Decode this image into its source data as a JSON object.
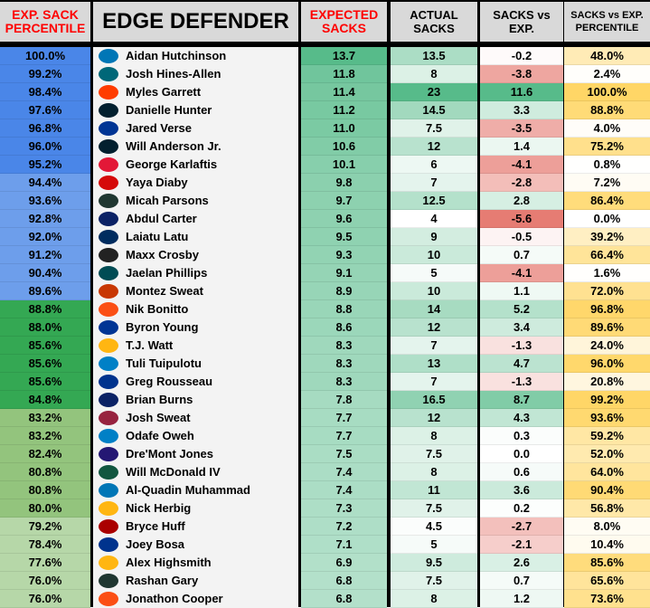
{
  "headers": {
    "pct": "EXP. SACK PERCENTILE",
    "name": "EDGE DEFENDER",
    "exp": "EXPECTED SACKS",
    "actual": "ACTUAL SACKS",
    "diff": "SACKS vs EXP.",
    "diffpct": "SACKS vs EXP. PERCENTILE"
  },
  "colors": {
    "tier1": "#4a86e8",
    "tier2": "#6d9eeb",
    "tier3": "#34a853",
    "tier4": "#93c47d",
    "tier5": "#b6d7a8",
    "green": "#57bb8a",
    "red": "#e67c73",
    "yellow": "#ffd666",
    "name_bg": "#f3f3f3",
    "header_bg": "#d9d9d9"
  },
  "rows": [
    {
      "pct": "100.0%",
      "logo": "lions-logo",
      "name": "Aidan Hutchinson",
      "exp": "13.7",
      "actual": "13.5",
      "diff": "-0.2",
      "diffpct": "48.0%",
      "tier": 1
    },
    {
      "pct": "99.2%",
      "logo": "jaguars-logo",
      "name": "Josh Hines-Allen",
      "exp": "11.8",
      "actual": "8",
      "diff": "-3.8",
      "diffpct": "2.4%",
      "tier": 1
    },
    {
      "pct": "98.4%",
      "logo": "browns-logo",
      "name": "Myles Garrett",
      "exp": "11.4",
      "actual": "23",
      "diff": "11.6",
      "diffpct": "100.0%",
      "tier": 1
    },
    {
      "pct": "97.6%",
      "logo": "texans-logo",
      "name": "Danielle Hunter",
      "exp": "11.2",
      "actual": "14.5",
      "diff": "3.3",
      "diffpct": "88.8%",
      "tier": 1
    },
    {
      "pct": "96.8%",
      "logo": "rams-logo",
      "name": "Jared Verse",
      "exp": "11.0",
      "actual": "7.5",
      "diff": "-3.5",
      "diffpct": "4.0%",
      "tier": 1
    },
    {
      "pct": "96.0%",
      "logo": "texans-logo",
      "name": "Will Anderson Jr.",
      "exp": "10.6",
      "actual": "12",
      "diff": "1.4",
      "diffpct": "75.2%",
      "tier": 1
    },
    {
      "pct": "95.2%",
      "logo": "chiefs-logo",
      "name": "George Karlaftis",
      "exp": "10.1",
      "actual": "6",
      "diff": "-4.1",
      "diffpct": "0.8%",
      "tier": 1
    },
    {
      "pct": "94.4%",
      "logo": "buccaneers-logo",
      "name": "Yaya Diaby",
      "exp": "9.8",
      "actual": "7",
      "diff": "-2.8",
      "diffpct": "7.2%",
      "tier": 2
    },
    {
      "pct": "93.6%",
      "logo": "packers-logo",
      "name": "Micah Parsons",
      "exp": "9.7",
      "actual": "12.5",
      "diff": "2.8",
      "diffpct": "86.4%",
      "tier": 2
    },
    {
      "pct": "92.8%",
      "logo": "giants-logo",
      "name": "Abdul Carter",
      "exp": "9.6",
      "actual": "4",
      "diff": "-5.6",
      "diffpct": "0.0%",
      "tier": 2
    },
    {
      "pct": "92.0%",
      "logo": "colts-logo",
      "name": "Laiatu Latu",
      "exp": "9.5",
      "actual": "9",
      "diff": "-0.5",
      "diffpct": "39.2%",
      "tier": 2
    },
    {
      "pct": "91.2%",
      "logo": "raiders-logo",
      "name": "Maxx Crosby",
      "exp": "9.3",
      "actual": "10",
      "diff": "0.7",
      "diffpct": "66.4%",
      "tier": 2
    },
    {
      "pct": "90.4%",
      "logo": "eagles-logo",
      "name": "Jaelan Phillips",
      "exp": "9.1",
      "actual": "5",
      "diff": "-4.1",
      "diffpct": "1.6%",
      "tier": 2
    },
    {
      "pct": "89.6%",
      "logo": "bears-logo",
      "name": "Montez Sweat",
      "exp": "8.9",
      "actual": "10",
      "diff": "1.1",
      "diffpct": "72.0%",
      "tier": 2
    },
    {
      "pct": "88.8%",
      "logo": "broncos-logo",
      "name": "Nik Bonitto",
      "exp": "8.8",
      "actual": "14",
      "diff": "5.2",
      "diffpct": "96.8%",
      "tier": 3
    },
    {
      "pct": "88.0%",
      "logo": "rams-logo",
      "name": "Byron Young",
      "exp": "8.6",
      "actual": "12",
      "diff": "3.4",
      "diffpct": "89.6%",
      "tier": 3
    },
    {
      "pct": "85.6%",
      "logo": "steelers-logo",
      "name": "T.J. Watt",
      "exp": "8.3",
      "actual": "7",
      "diff": "-1.3",
      "diffpct": "24.0%",
      "tier": 3
    },
    {
      "pct": "85.6%",
      "logo": "chargers-logo",
      "name": "Tuli Tuipulotu",
      "exp": "8.3",
      "actual": "13",
      "diff": "4.7",
      "diffpct": "96.0%",
      "tier": 3
    },
    {
      "pct": "85.6%",
      "logo": "bills-logo",
      "name": "Greg Rousseau",
      "exp": "8.3",
      "actual": "7",
      "diff": "-1.3",
      "diffpct": "20.8%",
      "tier": 3
    },
    {
      "pct": "84.8%",
      "logo": "giants-logo",
      "name": "Brian Burns",
      "exp": "7.8",
      "actual": "16.5",
      "diff": "8.7",
      "diffpct": "99.2%",
      "tier": 3
    },
    {
      "pct": "83.2%",
      "logo": "cardinals-logo",
      "name": "Josh Sweat",
      "exp": "7.7",
      "actual": "12",
      "diff": "4.3",
      "diffpct": "93.6%",
      "tier": 4
    },
    {
      "pct": "83.2%",
      "logo": "chargers-logo",
      "name": "Odafe Oweh",
      "exp": "7.7",
      "actual": "8",
      "diff": "0.3",
      "diffpct": "59.2%",
      "tier": 4
    },
    {
      "pct": "82.4%",
      "logo": "ravens-logo",
      "name": "Dre'Mont Jones",
      "exp": "7.5",
      "actual": "7.5",
      "diff": "0.0",
      "diffpct": "52.0%",
      "tier": 4
    },
    {
      "pct": "80.8%",
      "logo": "jets-logo",
      "name": "Will McDonald IV",
      "exp": "7.4",
      "actual": "8",
      "diff": "0.6",
      "diffpct": "64.0%",
      "tier": 4
    },
    {
      "pct": "80.8%",
      "logo": "lions-logo",
      "name": "Al-Quadin Muhammad",
      "exp": "7.4",
      "actual": "11",
      "diff": "3.6",
      "diffpct": "90.4%",
      "tier": 4
    },
    {
      "pct": "80.0%",
      "logo": "steelers-logo",
      "name": "Nick Herbig",
      "exp": "7.3",
      "actual": "7.5",
      "diff": "0.2",
      "diffpct": "56.8%",
      "tier": 4
    },
    {
      "pct": "79.2%",
      "logo": "49ers-logo",
      "name": "Bryce Huff",
      "exp": "7.2",
      "actual": "4.5",
      "diff": "-2.7",
      "diffpct": "8.0%",
      "tier": 5
    },
    {
      "pct": "78.4%",
      "logo": "bills-logo",
      "name": "Joey Bosa",
      "exp": "7.1",
      "actual": "5",
      "diff": "-2.1",
      "diffpct": "10.4%",
      "tier": 5
    },
    {
      "pct": "77.6%",
      "logo": "steelers-logo",
      "name": "Alex Highsmith",
      "exp": "6.9",
      "actual": "9.5",
      "diff": "2.6",
      "diffpct": "85.6%",
      "tier": 5
    },
    {
      "pct": "76.0%",
      "logo": "packers-logo",
      "name": "Rashan Gary",
      "exp": "6.8",
      "actual": "7.5",
      "diff": "0.7",
      "diffpct": "65.6%",
      "tier": 5
    },
    {
      "pct": "76.0%",
      "logo": "broncos-logo",
      "name": "Jonathon Cooper",
      "exp": "6.8",
      "actual": "8",
      "diff": "1.2",
      "diffpct": "73.6%",
      "tier": 5
    }
  ]
}
